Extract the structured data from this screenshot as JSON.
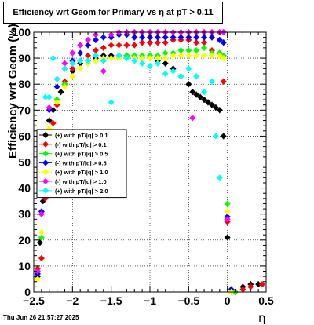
{
  "title": "Efficiency wrt Geom for Primary vs    η  at pT > 0.11",
  "footer": "Thu Jun 26 21:57:27 2025",
  "chart_data": {
    "type": "scatter",
    "title": "Efficiency wrt Geom for Primary vs    η  at pT > 0.11",
    "xlabel": "η",
    "ylabel": "Efficiency wrt Geom (%)",
    "xlim": [
      -2.5,
      0.5
    ],
    "ylim": [
      0,
      100
    ],
    "grid": true,
    "legend_position": "left-middle",
    "x_ticks": [
      -2.5,
      -2,
      -1.5,
      -1,
      -0.5,
      0,
      0.5
    ],
    "x_tick_labels": [
      "−2.5",
      "−2",
      "−1.5",
      "−1",
      "−0.5",
      "0",
      "0.5"
    ],
    "y_ticks": [
      0,
      10,
      20,
      30,
      40,
      50,
      60,
      70,
      80,
      90,
      100
    ],
    "series": [
      {
        "name": "(+) with pT/|q| > 0.1",
        "color": "#000000",
        "points": [
          [
            -2.45,
            6
          ],
          [
            -2.42,
            19
          ],
          [
            -2.38,
            35
          ],
          [
            -2.35,
            55
          ],
          [
            -2.3,
            66
          ],
          [
            -2.25,
            70
          ],
          [
            -2.2,
            74
          ],
          [
            -2.15,
            77
          ],
          [
            -2.1,
            80
          ],
          [
            -2.0,
            85
          ],
          [
            -1.9,
            88
          ],
          [
            -1.8,
            89
          ],
          [
            -1.7,
            90
          ],
          [
            -1.6,
            91
          ],
          [
            -1.5,
            91
          ],
          [
            -1.4,
            91
          ],
          [
            -1.3,
            91
          ],
          [
            -1.2,
            91
          ],
          [
            -1.1,
            90
          ],
          [
            -1.0,
            90
          ],
          [
            -0.9,
            89
          ],
          [
            -0.8,
            88
          ],
          [
            -0.7,
            86
          ],
          [
            -0.6,
            83
          ],
          [
            -0.5,
            80
          ],
          [
            -0.45,
            77
          ],
          [
            -0.4,
            76
          ],
          [
            -0.35,
            75
          ],
          [
            -0.3,
            74
          ],
          [
            -0.25,
            73
          ],
          [
            -0.2,
            72
          ],
          [
            -0.15,
            71
          ],
          [
            -0.1,
            70
          ],
          [
            -0.05,
            60
          ],
          [
            0.0,
            21
          ],
          [
            0.05,
            1
          ],
          [
            0.1,
            0
          ],
          [
            0.2,
            2
          ],
          [
            0.3,
            3
          ],
          [
            0.4,
            3
          ]
        ]
      },
      {
        "name": "(-) with pT/|q| > 0.1",
        "color": "#ff0000",
        "points": [
          [
            -2.45,
            9
          ],
          [
            -2.4,
            13
          ],
          [
            -2.35,
            36
          ],
          [
            -2.3,
            55
          ],
          [
            -2.25,
            65
          ],
          [
            -2.2,
            72
          ],
          [
            -2.1,
            81
          ],
          [
            -2.0,
            86
          ],
          [
            -1.9,
            89
          ],
          [
            -1.8,
            91
          ],
          [
            -1.7,
            93
          ],
          [
            -1.6,
            94
          ],
          [
            -1.5,
            95
          ],
          [
            -1.4,
            95
          ],
          [
            -1.3,
            95
          ],
          [
            -1.2,
            95
          ],
          [
            -1.1,
            96
          ],
          [
            -1.0,
            96
          ],
          [
            -0.9,
            96
          ],
          [
            -0.8,
            96
          ],
          [
            -0.7,
            97
          ],
          [
            -0.6,
            97
          ],
          [
            -0.5,
            97
          ],
          [
            -0.4,
            96
          ],
          [
            -0.3,
            96
          ],
          [
            -0.2,
            93
          ],
          [
            -0.1,
            92
          ],
          [
            -0.05,
            81
          ],
          [
            0.0,
            27
          ],
          [
            0.1,
            0
          ],
          [
            0.2,
            1
          ],
          [
            0.3,
            2
          ],
          [
            0.45,
            3
          ]
        ]
      },
      {
        "name": "(+) with pT/|q| > 0.5",
        "color": "#00ff00",
        "points": [
          [
            -2.45,
            7
          ],
          [
            -2.4,
            21
          ],
          [
            -2.35,
            47
          ],
          [
            -2.3,
            62
          ],
          [
            -2.2,
            74
          ],
          [
            -2.1,
            80
          ],
          [
            -2.0,
            83
          ],
          [
            -1.9,
            86
          ],
          [
            -1.8,
            88
          ],
          [
            -1.7,
            89
          ],
          [
            -1.6,
            89
          ],
          [
            -1.5,
            90
          ],
          [
            -1.4,
            90
          ],
          [
            -1.3,
            91
          ],
          [
            -1.2,
            91
          ],
          [
            -1.1,
            91
          ],
          [
            -1.0,
            91
          ],
          [
            -0.9,
            91
          ],
          [
            -0.8,
            92
          ],
          [
            -0.7,
            92
          ],
          [
            -0.6,
            93
          ],
          [
            -0.5,
            93
          ],
          [
            -0.4,
            93
          ],
          [
            -0.3,
            94
          ],
          [
            -0.2,
            92
          ],
          [
            -0.1,
            92
          ],
          [
            -0.05,
            91
          ],
          [
            0.0,
            34
          ],
          [
            0.05,
            1
          ],
          [
            0.1,
            0
          ]
        ]
      },
      {
        "name": "(-) with pT/|q| > 0.5",
        "color": "#0000ff",
        "points": [
          [
            -2.45,
            7
          ],
          [
            -2.4,
            31
          ],
          [
            -2.35,
            58
          ],
          [
            -2.3,
            70
          ],
          [
            -2.2,
            79
          ],
          [
            -2.1,
            86
          ],
          [
            -2.0,
            89
          ],
          [
            -1.9,
            92
          ],
          [
            -1.8,
            95
          ],
          [
            -1.7,
            97
          ],
          [
            -1.6,
            98
          ],
          [
            -1.5,
            98
          ],
          [
            -1.4,
            99
          ],
          [
            -1.3,
            99
          ],
          [
            -1.2,
            98
          ],
          [
            -1.1,
            98
          ],
          [
            -1.0,
            98
          ],
          [
            -0.9,
            98
          ],
          [
            -0.8,
            98
          ],
          [
            -0.7,
            98
          ],
          [
            -0.6,
            98
          ],
          [
            -0.5,
            98
          ],
          [
            -0.4,
            98
          ],
          [
            -0.3,
            98
          ],
          [
            -0.2,
            98
          ],
          [
            -0.1,
            97
          ],
          [
            -0.05,
            96
          ],
          [
            0.0,
            29
          ],
          [
            0.05,
            1
          ]
        ]
      },
      {
        "name": "(+) with pT/|q| > 1.0",
        "color": "#ffff00",
        "points": [
          [
            -2.45,
            5
          ],
          [
            -2.4,
            23
          ],
          [
            -2.35,
            53
          ],
          [
            -2.3,
            63
          ],
          [
            -2.2,
            73
          ],
          [
            -2.1,
            79
          ],
          [
            -2.0,
            83
          ],
          [
            -1.9,
            86
          ],
          [
            -1.8,
            88
          ],
          [
            -1.7,
            89
          ],
          [
            -1.6,
            90
          ],
          [
            -1.5,
            90
          ],
          [
            -1.4,
            90
          ],
          [
            -1.3,
            90
          ],
          [
            -1.2,
            90
          ],
          [
            -1.1,
            90
          ],
          [
            -1.0,
            90
          ],
          [
            -0.9,
            90
          ],
          [
            -0.8,
            90
          ],
          [
            -0.7,
            91
          ],
          [
            -0.6,
            91
          ],
          [
            -0.5,
            91
          ],
          [
            -0.4,
            91
          ],
          [
            -0.3,
            91
          ],
          [
            -0.2,
            91
          ],
          [
            -0.1,
            91
          ],
          [
            -0.05,
            90
          ],
          [
            0.0,
            31
          ],
          [
            0.05,
            0
          ]
        ]
      },
      {
        "name": "(-) with pT/|q| > 1.0",
        "color": "#ff00ff",
        "points": [
          [
            -2.45,
            8
          ],
          [
            -2.4,
            30
          ],
          [
            -2.35,
            58
          ],
          [
            -2.3,
            71
          ],
          [
            -2.2,
            82
          ],
          [
            -2.1,
            88
          ],
          [
            -2.0,
            92
          ],
          [
            -1.9,
            95
          ],
          [
            -1.8,
            97
          ],
          [
            -1.7,
            99
          ],
          [
            -1.6,
            85
          ],
          [
            -1.5,
            99
          ],
          [
            -1.4,
            100
          ],
          [
            -1.3,
            100
          ],
          [
            -1.2,
            100
          ],
          [
            -1.1,
            100
          ],
          [
            -1.0,
            100
          ],
          [
            -0.9,
            100
          ],
          [
            -0.8,
            100
          ],
          [
            -0.7,
            100
          ],
          [
            -0.6,
            100
          ],
          [
            -0.5,
            100
          ],
          [
            -0.45,
            67
          ],
          [
            -0.4,
            100
          ],
          [
            -0.3,
            100
          ],
          [
            -0.2,
            100
          ],
          [
            -0.1,
            100
          ],
          [
            -0.05,
            100
          ],
          [
            0.0,
            28
          ]
        ]
      },
      {
        "name": "(+) with pT/|q| > 2.0",
        "color": "#00ffff",
        "points": [
          [
            -2.4,
            41
          ],
          [
            -2.35,
            75
          ],
          [
            -2.3,
            75
          ],
          [
            -2.25,
            90
          ],
          [
            -2.2,
            82
          ],
          [
            -2.1,
            86
          ],
          [
            -2.0,
            88
          ],
          [
            -1.9,
            89
          ],
          [
            -1.8,
            89
          ],
          [
            -1.7,
            91
          ],
          [
            -1.6,
            89
          ],
          [
            -1.5,
            73
          ],
          [
            -1.4,
            91
          ],
          [
            -1.3,
            90
          ],
          [
            -1.2,
            89
          ],
          [
            -1.1,
            88
          ],
          [
            -1.0,
            87
          ],
          [
            -0.9,
            88
          ],
          [
            -0.8,
            84
          ],
          [
            -0.7,
            85
          ],
          [
            -0.6,
            83
          ],
          [
            -0.5,
            86
          ],
          [
            -0.4,
            83
          ],
          [
            -0.3,
            77
          ],
          [
            -0.2,
            81
          ],
          [
            -0.15,
            60
          ],
          [
            -0.1,
            44
          ]
        ]
      }
    ]
  }
}
